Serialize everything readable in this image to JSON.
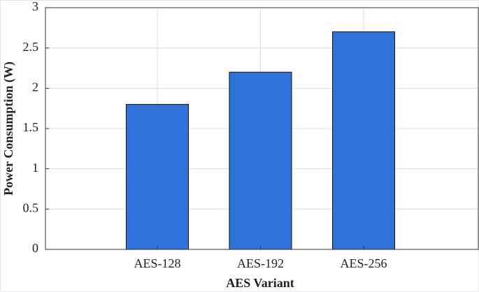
{
  "chart_data": {
    "type": "bar",
    "x_label": "AES Variant",
    "y_label": "Power Consumption (W)",
    "categories": [
      "AES-128",
      "AES-192",
      "AES-256"
    ],
    "values": [
      1.8,
      2.2,
      2.7
    ],
    "color": "#3072dc",
    "ylim": [
      0,
      3
    ],
    "yticks": [
      0,
      0.5,
      1,
      1.5,
      2,
      2.5,
      3
    ],
    "grid": true
  }
}
